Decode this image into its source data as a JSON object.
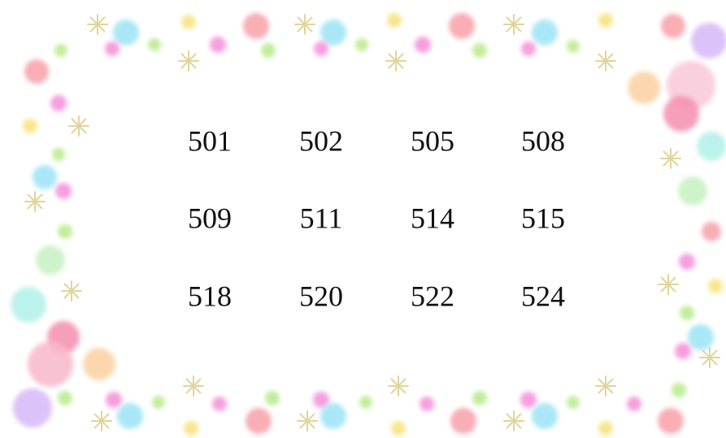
{
  "grid": {
    "rows": [
      [
        "501",
        "502",
        "505",
        "508"
      ],
      [
        "509",
        "511",
        "514",
        "515"
      ],
      [
        "518",
        "520",
        "522",
        "524"
      ]
    ]
  }
}
